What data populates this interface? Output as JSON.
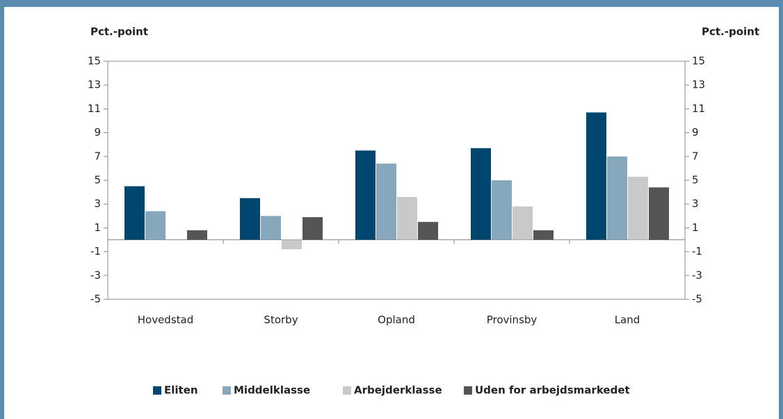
{
  "chart_data": {
    "type": "bar",
    "y_label": "Pct.-point",
    "y2_label": "Pct.-point",
    "categories": [
      "Hovedstad",
      "Storby",
      "Opland",
      "Provinsby",
      "Land"
    ],
    "series": [
      {
        "name": "Eliten",
        "color": "#00466e",
        "values": [
          4.5,
          3.5,
          7.5,
          7.7,
          10.7
        ]
      },
      {
        "name": "Middelklasse",
        "color": "#86a7bc",
        "values": [
          2.4,
          2.0,
          6.4,
          5.0,
          7.0
        ]
      },
      {
        "name": "Arbejderklasse",
        "color": "#c9c9c9",
        "values": [
          0,
          -0.8,
          3.6,
          2.8,
          5.3
        ]
      },
      {
        "name": "Uden for arbejdsmarkedet",
        "color": "#555555",
        "values": [
          0.8,
          1.9,
          1.5,
          0.8,
          4.4
        ]
      }
    ],
    "ylim": [
      -5,
      15
    ],
    "yticks": [
      -5,
      -3,
      -1,
      1,
      3,
      5,
      7,
      9,
      11,
      13,
      15
    ],
    "y2lim": [
      -5,
      15
    ],
    "y2ticks": [
      -5,
      -3,
      -1,
      1,
      3,
      5,
      7,
      9,
      11,
      13,
      15
    ],
    "legend": "bottom"
  }
}
